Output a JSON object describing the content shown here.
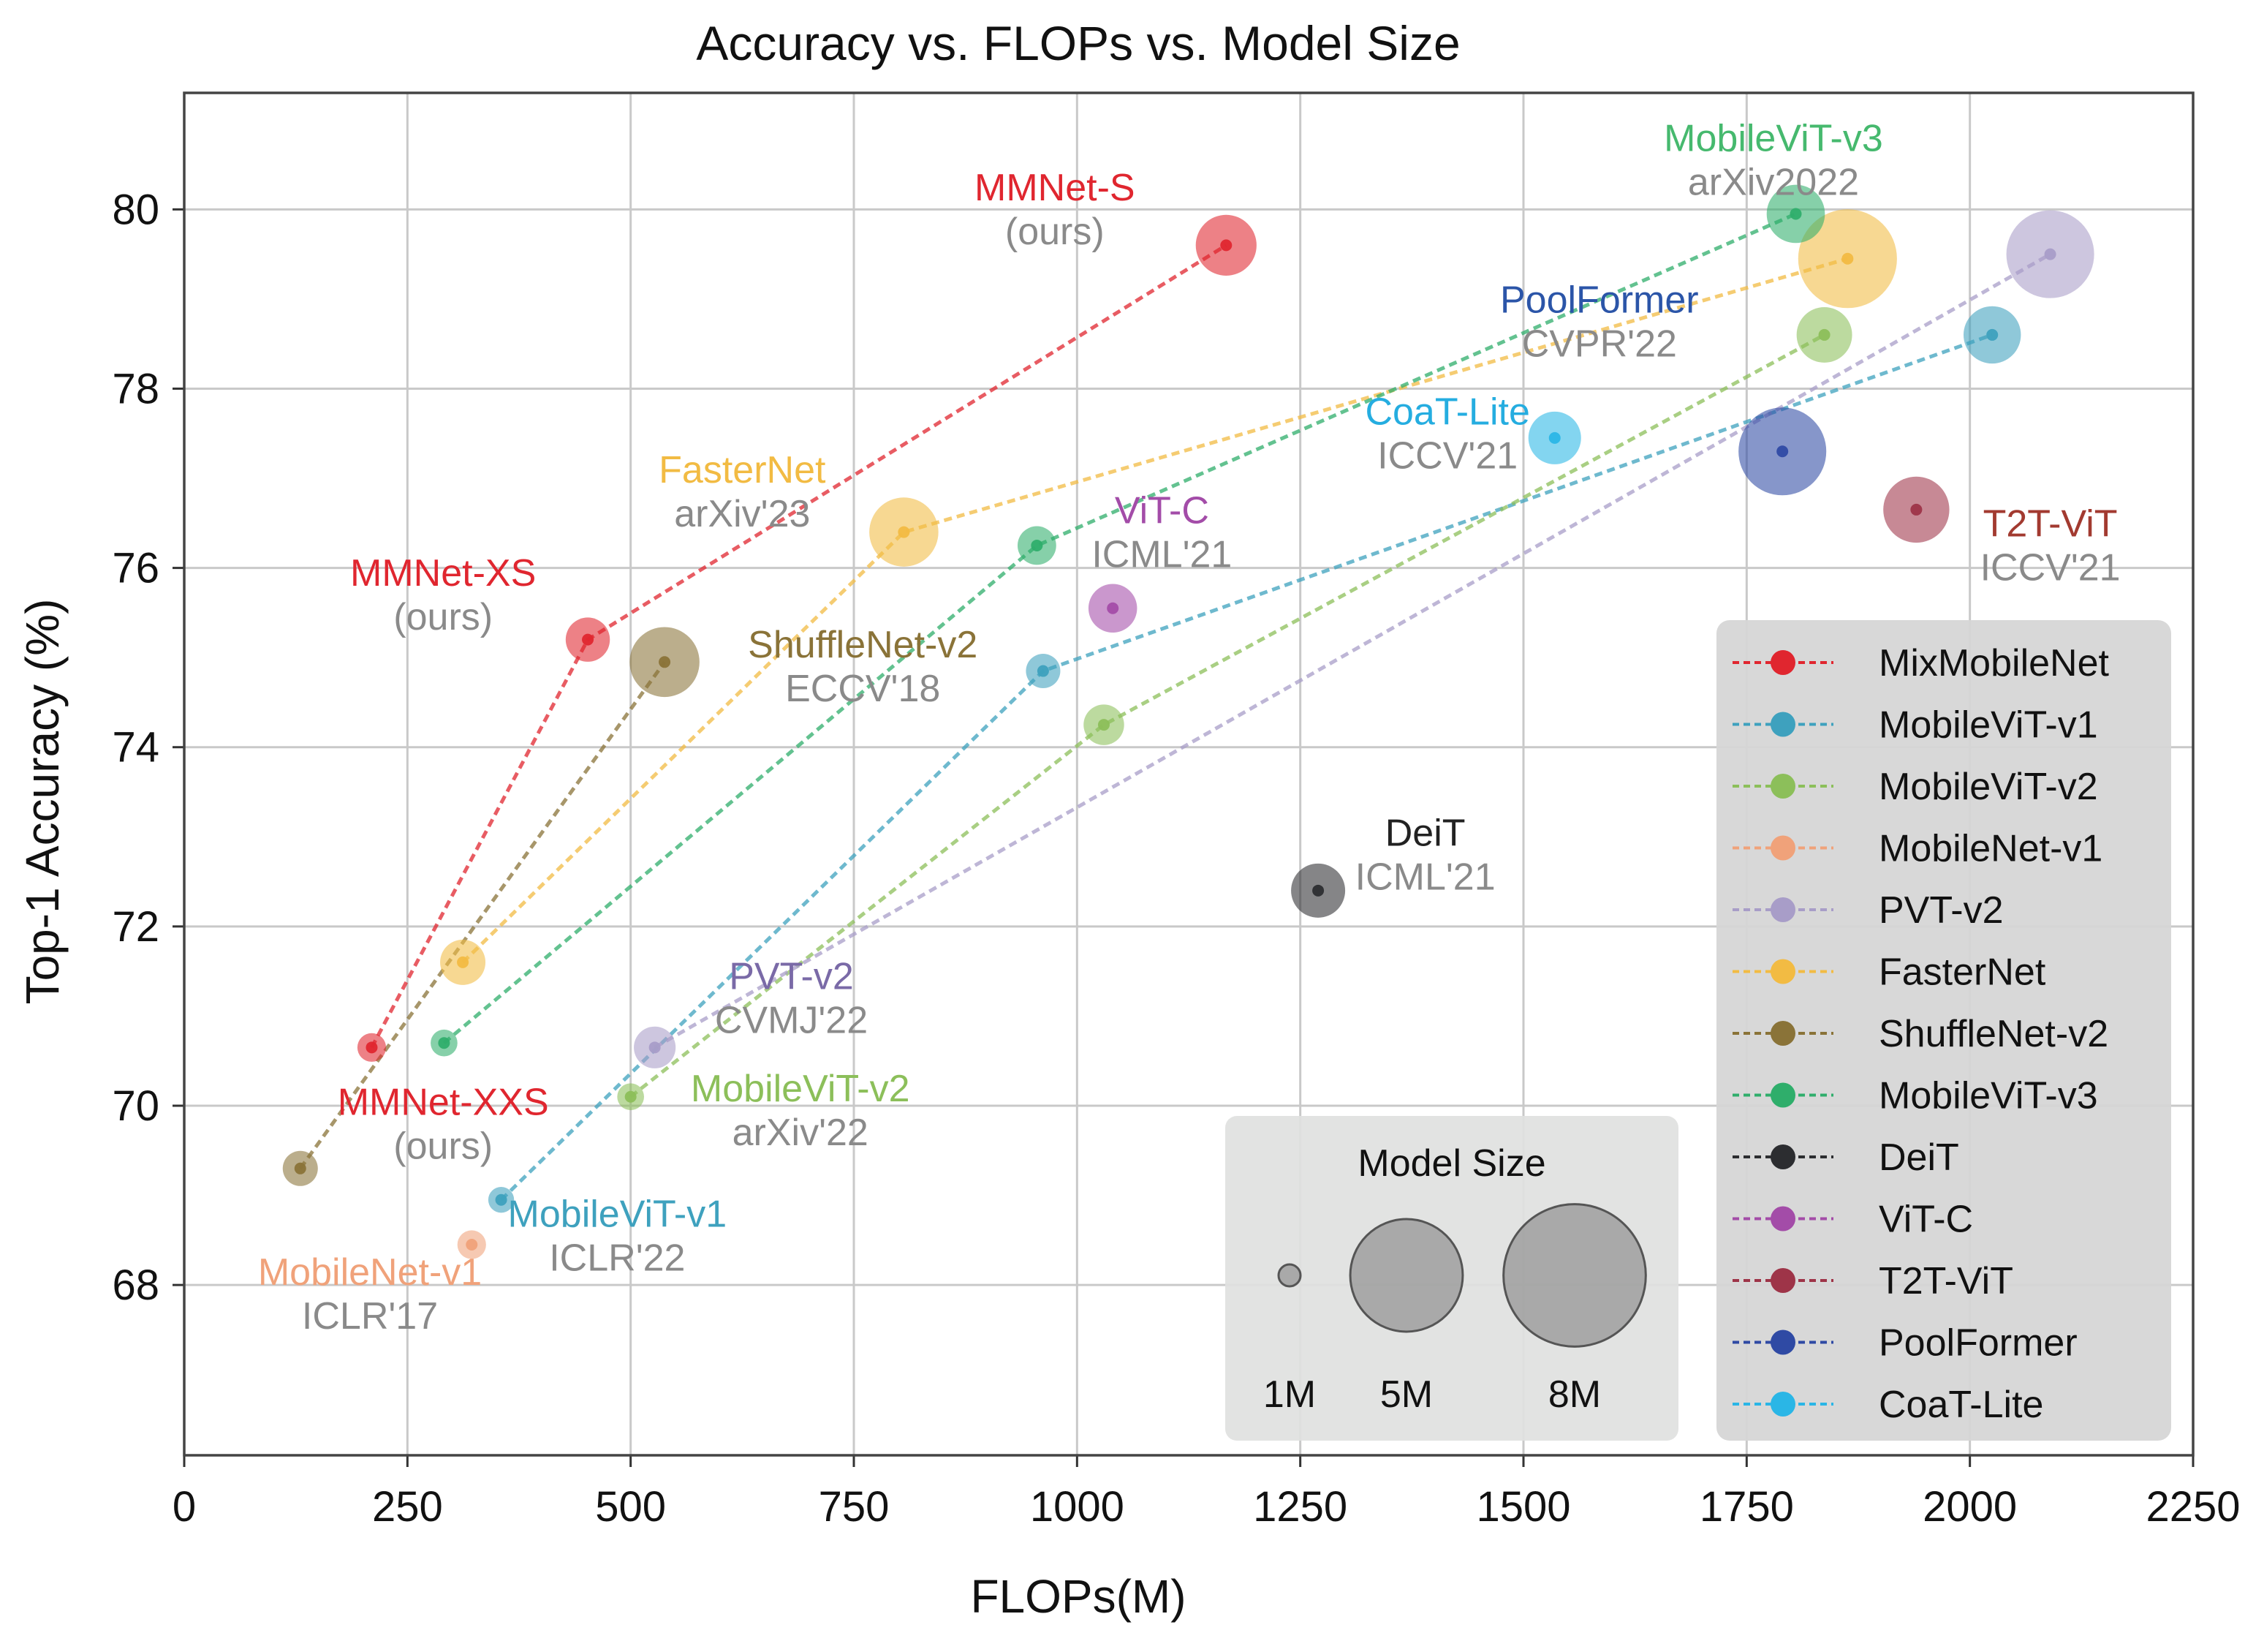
{
  "chart_data": {
    "type": "scatter",
    "title": "Accuracy vs. FLOPs vs. Model Size",
    "xlabel": "FLOPs(M)",
    "ylabel": "Top-1 Accuracy (%)",
    "xlim": [
      0,
      2250
    ],
    "ylim": [
      66.1,
      81.3
    ],
    "xticks": [
      0,
      250,
      500,
      750,
      1000,
      1250,
      1500,
      1750,
      2000,
      2250
    ],
    "yticks": [
      68,
      70,
      72,
      74,
      76,
      78,
      80
    ],
    "grid": true,
    "series": [
      {
        "name": "MixMobileNet",
        "color": "#e0262f",
        "points": [
          {
            "x": 210,
            "y": 70.65,
            "size": 1.6
          },
          {
            "x": 452,
            "y": 75.2,
            "size": 3.8
          },
          {
            "x": 1167,
            "y": 79.6,
            "size": 7.2
          }
        ]
      },
      {
        "name": "MobileViT-v1",
        "color": "#3ea1be",
        "points": [
          {
            "x": 355,
            "y": 68.95,
            "size": 1.3
          },
          {
            "x": 962,
            "y": 74.85,
            "size": 2.3
          },
          {
            "x": 2025,
            "y": 78.6,
            "size": 6.4
          }
        ]
      },
      {
        "name": "MobileViT-v2",
        "color": "#8cbf5a",
        "points": [
          {
            "x": 500,
            "y": 70.1,
            "size": 1.4
          },
          {
            "x": 1030,
            "y": 74.25,
            "size": 3.2
          },
          {
            "x": 1837,
            "y": 78.6,
            "size": 6.0
          }
        ]
      },
      {
        "name": "MobileNet-v1",
        "color": "#f0a27a",
        "points": [
          {
            "x": 322,
            "y": 68.45,
            "size": 1.6
          }
        ]
      },
      {
        "name": "PVT-v2",
        "color": "#a89dc8",
        "points": [
          {
            "x": 527,
            "y": 70.65,
            "size": 3.4
          },
          {
            "x": 2090,
            "y": 79.5,
            "size": 15.0
          }
        ]
      },
      {
        "name": "FasterNet",
        "color": "#f2bb43",
        "points": [
          {
            "x": 312,
            "y": 71.6,
            "size": 4.0
          },
          {
            "x": 806,
            "y": 76.4,
            "size": 9.3
          },
          {
            "x": 1863,
            "y": 79.45,
            "size": 19.0
          }
        ]
      },
      {
        "name": "ShuffleNet-v2",
        "color": "#8a7338",
        "points": [
          {
            "x": 130,
            "y": 69.3,
            "size": 2.4
          },
          {
            "x": 538,
            "y": 74.95,
            "size": 9.5
          }
        ]
      },
      {
        "name": "MobileViT-v3",
        "color": "#2fae6b",
        "points": [
          {
            "x": 291,
            "y": 70.7,
            "size": 1.4
          },
          {
            "x": 955,
            "y": 76.25,
            "size": 2.9
          },
          {
            "x": 1805,
            "y": 79.95,
            "size": 6.6
          }
        ]
      },
      {
        "name": "DeiT",
        "color": "#2c2d30",
        "points": [
          {
            "x": 1270,
            "y": 72.4,
            "size": 5.7
          }
        ]
      },
      {
        "name": "ViT-C",
        "color": "#a34ca8",
        "points": [
          {
            "x": 1040,
            "y": 75.55,
            "size": 4.6
          }
        ]
      },
      {
        "name": "T2T-ViT",
        "color": "#9e3448",
        "points": [
          {
            "x": 1940,
            "y": 76.65,
            "size": 8.5
          }
        ]
      },
      {
        "name": "PoolFormer",
        "color": "#2f4aa4",
        "points": [
          {
            "x": 1790,
            "y": 77.3,
            "size": 15.0
          }
        ]
      },
      {
        "name": "CoaT-Lite",
        "color": "#2ab6e6",
        "points": [
          {
            "x": 1535,
            "y": 77.45,
            "size": 5.4
          }
        ]
      }
    ],
    "annotations": [
      {
        "line1": "MMNet-S",
        "line2": "(ours)",
        "color1": "#e0262f",
        "x": 975,
        "y": 80.1
      },
      {
        "line1": "MMNet-XS",
        "line2": "(ours)",
        "color1": "#e0262f",
        "x": 290,
        "y": 75.8
      },
      {
        "line1": "MMNet-XXS",
        "line2": "(ours)",
        "color1": "#e0262f",
        "x": 290,
        "y": 69.9
      },
      {
        "line1": "FasterNet",
        "line2": "arXiv'23",
        "color1": "#f2bb43",
        "x": 625,
        "y": 76.95
      },
      {
        "line1": "ShuffleNet-v2",
        "line2": "ECCV'18",
        "color1": "#8a7338",
        "x": 760,
        "y": 75.0
      },
      {
        "line1": "ViT-C",
        "line2": "ICML'21",
        "color1": "#a34ca8",
        "x": 1095,
        "y": 76.5
      },
      {
        "line1": "PVT-v2",
        "line2": "CVMJ'22",
        "color1": "#7a6aa7",
        "x": 680,
        "y": 71.3
      },
      {
        "line1": "MobileViT-v2",
        "line2": "arXiv'22",
        "color1": "#8cbf5a",
        "x": 690,
        "y": 70.05
      },
      {
        "line1": "MobileViT-v1",
        "line2": "ICLR'22",
        "color1": "#3ea1be",
        "x": 485,
        "y": 68.65
      },
      {
        "line1": "MobileNet-v1",
        "line2": "ICLR'17",
        "color1": "#f0a27a",
        "x": 208,
        "y": 68.0
      },
      {
        "line1": "MobileViT-v3",
        "line2": "arXiv2022",
        "color1": "#46b96e",
        "x": 1780,
        "y": 80.65
      },
      {
        "line1": "PoolFormer",
        "line2": "CVPR'22",
        "color1": "#2b55a8",
        "x": 1585,
        "y": 78.85
      },
      {
        "line1": "CoaT-Lite",
        "line2": "ICCV'21",
        "color1": "#25ade0",
        "x": 1415,
        "y": 77.6
      },
      {
        "line1": "T2T-ViT",
        "line2": "ICCV'21",
        "color1": "#a23a30",
        "x": 2090,
        "y": 76.35
      },
      {
        "line1": "DeiT",
        "line2": "ICML'21",
        "color1": "#222222",
        "x": 1390,
        "y": 72.9
      }
    ],
    "legend": {
      "location": "right",
      "entries": [
        "MixMobileNet",
        "MobileViT-v1",
        "MobileViT-v2",
        "MobileNet-v1",
        "PVT-v2",
        "FasterNet",
        "ShuffleNet-v2",
        "MobileViT-v3",
        "DeiT",
        "ViT-C",
        "T2T-ViT",
        "PoolFormer",
        "CoaT-Lite"
      ]
    },
    "size_legend": {
      "title": "Model Size",
      "entries": [
        {
          "label": "1M",
          "size": 1.0
        },
        {
          "label": "5M",
          "size": 5.0
        },
        {
          "label": "8M",
          "size": 8.0
        }
      ]
    }
  }
}
